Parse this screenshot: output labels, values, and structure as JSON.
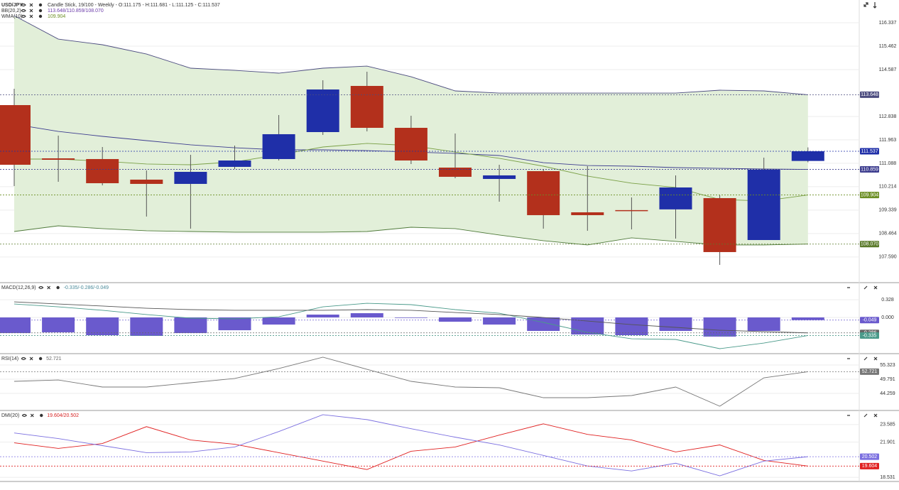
{
  "chart_data": [
    {
      "type": "candlestick",
      "title": "USD/JPY",
      "subtitle": "Candle Stick, 19/100 - Weekly - O:111.175 - H:111.681 - L:111.125 - C:111.537",
      "open": [
        113.261,
        111.272,
        111.246,
        110.477,
        110.318,
        110.954,
        111.246,
        112.253,
        113.977,
        112.412,
        110.927,
        110.503,
        110.795,
        109.257,
        109.339,
        109.366,
        109.787,
        108.222,
        111.175
      ],
      "high": [
        113.871,
        112.121,
        111.696,
        110.821,
        111.405,
        111.749,
        112.89,
        114.189,
        114.507,
        112.863,
        112.2,
        111.033,
        110.874,
        110.98,
        109.814,
        110.636,
        109.893,
        111.298,
        111.681
      ],
      "low": [
        110.238,
        110.397,
        110.264,
        109.098,
        108.647,
        110.874,
        111.192,
        112.147,
        112.28,
        111.06,
        110.53,
        109.654,
        108.647,
        108.567,
        108.62,
        108.276,
        107.294,
        108.222,
        111.125
      ],
      "close": [
        111.033,
        111.219,
        110.344,
        110.318,
        110.768,
        111.192,
        112.174,
        113.844,
        112.412,
        111.192,
        110.583,
        110.636,
        109.151,
        109.151,
        109.313,
        110.185,
        107.772,
        110.848,
        111.537
      ],
      "up_color": "#1f2fa8",
      "down_color": "#b3301c",
      "indicators": [
        {
          "name": "BB(20,2)",
          "value_label": "113.648/110.859/108.070",
          "color": "#6a3aa8"
        },
        {
          "name": "WMA(10)",
          "value_label": "109.904",
          "color": "#6b8e23"
        }
      ],
      "series": [
        {
          "color": "#4b4b7f",
          "values": [
            116.602,
            115.727,
            115.515,
            115.17,
            114.64,
            114.56,
            114.454,
            114.64,
            114.719,
            114.321,
            113.791,
            113.711,
            113.711,
            113.711,
            113.711,
            113.711,
            113.818,
            113.791,
            113.648
          ]
        },
        {
          "color": "#3d3d8f",
          "values": [
            112.545,
            112.279,
            112.094,
            111.935,
            111.776,
            111.669,
            111.59,
            111.59,
            111.563,
            111.51,
            111.457,
            111.378,
            111.112,
            111.006,
            110.98,
            110.927,
            110.9,
            110.874,
            110.859
          ]
        },
        {
          "color": "#4f7a3a",
          "values": [
            108.54,
            108.752,
            108.647,
            108.567,
            108.54,
            108.514,
            108.514,
            108.514,
            108.54,
            108.699,
            108.647,
            108.408,
            108.196,
            108.037,
            108.302,
            108.17,
            108.037,
            108.037,
            108.07
          ]
        },
        {
          "color": "#7aa046",
          "values": [
            111.245,
            111.245,
            111.166,
            111.06,
            111.033,
            111.139,
            111.404,
            111.696,
            111.829,
            111.749,
            111.51,
            111.272,
            110.98,
            110.609,
            110.344,
            110.185,
            109.734,
            109.681,
            109.904
          ]
        }
      ],
      "band_color": "#e2efd9",
      "ylim": [
        106.657,
        117.186
      ],
      "yticks": [
        116.337,
        115.462,
        114.587,
        112.838,
        111.963,
        111.088,
        110.214,
        109.339,
        108.464,
        {
          "value": 107.59,
          "label": "107.590"
        }
      ],
      "markers": [
        113.648,
        111.537,
        110.859,
        109.904,
        {
          "value": 108.07,
          "label": "108.070"
        }
      ],
      "marker_colors": [
        "#4b4b7f",
        "#1f2fa8",
        "#3d3d8f",
        "#6b8e23",
        "#5a7a2a"
      ],
      "grid": true
    },
    {
      "type": "macd",
      "title": "MACD(12,26,9)",
      "value_label": "-0.335/-0.286/-0.049",
      "label_color": "#4a8a9a",
      "histogram": [
        -0.29,
        -0.276,
        -0.33,
        -0.342,
        -0.29,
        -0.237,
        -0.132,
        0.053,
        0.079,
        -0.01,
        -0.079,
        -0.132,
        -0.25,
        -0.316,
        -0.329,
        -0.25,
        -0.355,
        -0.25,
        -0.049
      ],
      "histogram_color": "#6a5acd",
      "series": [
        {
          "color": "#4a9a8a",
          "values": [
            0.25,
            0.197,
            0.132,
            0.053,
            -0.013,
            -0.026,
            0.013,
            0.197,
            0.263,
            0.237,
            0.145,
            0.079,
            -0.092,
            -0.276,
            -0.395,
            -0.408,
            -0.579,
            -0.474,
            -0.335
          ]
        },
        {
          "color": "#555555",
          "values": [
            0.289,
            0.25,
            0.211,
            0.171,
            0.145,
            0.132,
            0.132,
            0.132,
            0.145,
            0.132,
            0.092,
            0.053,
            0,
            -0.066,
            -0.132,
            -0.184,
            -0.237,
            -0.263,
            -0.286
          ]
        }
      ],
      "ylim": [
        -0.658,
        0.632
      ],
      "yticks": [
        0.328,
        {
          "value": 0,
          "label": "0.000"
        }
      ],
      "markers": [
        -0.049,
        -0.286,
        -0.335
      ],
      "marker_colors": [
        "#6a5acd",
        "#666666",
        "#4a9a8a"
      ],
      "grid": true
    },
    {
      "type": "line",
      "title": "RSI(14)",
      "value_label": "52.721",
      "label_color": "#666666",
      "series": [
        {
          "color": "#777777",
          "values": [
            48.96,
            49.51,
            46.75,
            46.75,
            48.41,
            50.07,
            53.94,
            58.37,
            53.66,
            48.96,
            46.75,
            46.47,
            42.6,
            42.6,
            43.43,
            46.75,
            39.28,
            50.34,
            52.721
          ]
        }
      ],
      "ylim": [
        37.9,
        59.47
      ],
      "yticks": [
        55.323,
        49.791,
        44.259
      ],
      "markers": [
        52.721
      ],
      "marker_colors": [
        "#777777"
      ],
      "grid": true
    },
    {
      "type": "line",
      "title": "DMI(20)",
      "value_label": "19.604/20.502",
      "label_color": "#d62020",
      "series": [
        {
          "color": "#e02020",
          "values": [
            21.834,
            21.295,
            21.767,
            23.383,
            22.104,
            21.699,
            20.891,
            20.083,
            19.275,
            21.026,
            21.43,
            22.575,
            23.652,
            22.642,
            22.104,
            20.959,
            21.632,
            20.151,
            19.604
          ]
        },
        {
          "color": "#7b6fe0",
          "values": [
            22.777,
            22.238,
            21.565,
            20.891,
            20.959,
            21.43,
            22.912,
            24.528,
            24.056,
            23.181,
            22.373,
            21.632,
            20.622,
            19.612,
            19.141,
            19.881,
            18.669,
            20.083,
            20.502
          ]
        }
      ],
      "ylim": [
        18.198,
        24.864
      ],
      "yticks": [
        23.585,
        21.901,
        18.531
      ],
      "markers": [
        20.502,
        19.604
      ],
      "marker_colors": [
        "#7b6fe0",
        "#e02020"
      ],
      "grid": true
    }
  ]
}
